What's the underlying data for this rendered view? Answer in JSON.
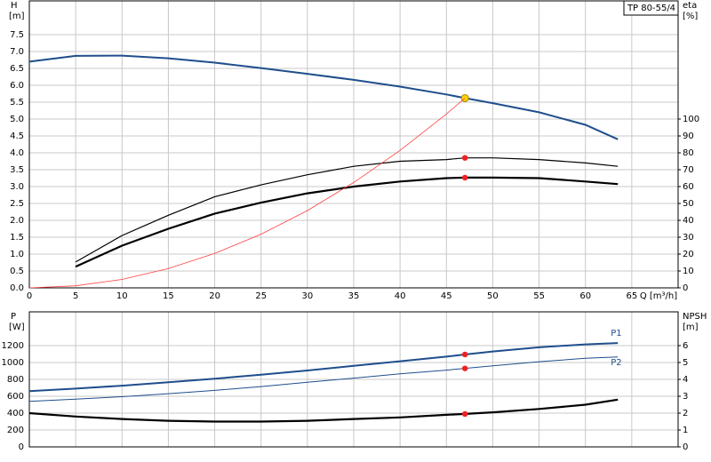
{
  "chart_data": [
    {
      "type": "line",
      "title": "TP 80-55/4",
      "ylabel": "H",
      "yunit": "[m]",
      "y2label": "eta",
      "y2unit": "[%]",
      "xlabel": "Q [m³/h]",
      "x": [
        0,
        5,
        10,
        15,
        20,
        25,
        30,
        35,
        40,
        45,
        47,
        50,
        55,
        60,
        63.5
      ],
      "xlim": [
        0,
        70
      ],
      "xticks": [
        0,
        5,
        10,
        15,
        20,
        25,
        30,
        35,
        40,
        45,
        50,
        55,
        60,
        65
      ],
      "show_xtick_labels": true,
      "ylim": [
        0,
        8.5
      ],
      "yticks": [
        {
          "value": 0,
          "label": "0.0"
        },
        0.5,
        {
          "value": 1,
          "label": "1.0"
        },
        1.5,
        {
          "value": 2,
          "label": "2.0"
        },
        2.5,
        {
          "value": 3,
          "label": "3.0"
        },
        3.5,
        {
          "value": 4,
          "label": "4.0"
        },
        4.5,
        {
          "value": 5,
          "label": "5.0"
        },
        5.5,
        {
          "value": 6,
          "label": "6.0"
        },
        6.5,
        {
          "value": 7,
          "label": "7.0"
        },
        7.5
      ],
      "y2lim": [
        0,
        170
      ],
      "y2ticks": [
        0,
        10,
        20,
        30,
        40,
        50,
        60,
        70,
        80,
        90,
        100
      ],
      "grid": true,
      "series": [
        {
          "color": "#1f4e8c",
          "width": 2,
          "values": [
            6.7,
            6.87,
            6.88,
            6.8,
            6.67,
            6.51,
            6.34,
            6.16,
            5.96,
            5.73,
            5.62,
            5.47,
            5.2,
            4.83,
            4.4
          ],
          "point": {
            "x": 47,
            "y": 5.62,
            "color": "#ffd700"
          }
        },
        {
          "color": "#000000",
          "width": 1.2,
          "axis": "y2",
          "values": [
            null,
            15.3,
            31,
            43,
            54,
            61,
            67,
            72,
            75,
            76,
            77,
            77,
            76,
            74,
            72
          ],
          "point": {
            "x": 47,
            "y": 77,
            "color": "#ee2222"
          }
        },
        {
          "color": "#000000",
          "width": 2.2,
          "axis": "y2",
          "values": [
            null,
            12.6,
            25,
            35,
            44,
            50.5,
            56,
            60,
            63,
            65,
            65.3,
            65.3,
            65,
            63,
            61.5
          ],
          "point": {
            "x": 47,
            "y": 65.3,
            "color": "#ee2222"
          }
        },
        {
          "color": "#ff4040",
          "width": 0.8,
          "values": [
            0,
            0.06,
            0.25,
            0.57,
            1.02,
            1.59,
            2.29,
            3.12,
            4.07,
            5.15,
            5.62,
            null,
            null,
            null,
            null
          ]
        }
      ]
    },
    {
      "type": "line",
      "ylabel": "P",
      "yunit": "[W]",
      "y2label": "NPSH",
      "y2unit": "[m]",
      "x": [
        0,
        5,
        10,
        15,
        20,
        25,
        30,
        35,
        40,
        45,
        47,
        50,
        55,
        60,
        63.5
      ],
      "xlim": [
        0,
        70
      ],
      "xticks": [
        0,
        5,
        10,
        15,
        20,
        25,
        30,
        35,
        40,
        45,
        50,
        55,
        60,
        65
      ],
      "show_xtick_labels": false,
      "ylim": [
        0,
        1600
      ],
      "yticks": [
        0,
        200,
        400,
        600,
        800,
        1000,
        1200
      ],
      "y2lim": [
        0,
        8
      ],
      "y2ticks": [
        0,
        1,
        2,
        3,
        4,
        5,
        6
      ],
      "grid": true,
      "series": [
        {
          "name": "P1",
          "color": "#1f4e8c",
          "width": 2,
          "values": [
            660,
            690,
            725,
            765,
            808,
            855,
            905,
            960,
            1015,
            1070,
            1095,
            1130,
            1180,
            1215,
            1230
          ],
          "point": {
            "x": 47,
            "y": 1095,
            "color": "#ee2222"
          }
        },
        {
          "name": "P2",
          "color": "#1f4e8c",
          "width": 1,
          "values": [
            540,
            565,
            595,
            630,
            670,
            715,
            765,
            815,
            865,
            910,
            930,
            960,
            1010,
            1050,
            1065
          ],
          "point": {
            "x": 47,
            "y": 930,
            "color": "#ee2222"
          }
        },
        {
          "color": "#000000",
          "width": 2.2,
          "axis": "y2",
          "values": [
            2.0,
            1.8,
            1.65,
            1.55,
            1.5,
            1.5,
            1.55,
            1.65,
            1.75,
            1.9,
            1.95,
            2.05,
            2.25,
            2.5,
            2.8
          ],
          "point": {
            "x": 47,
            "y": 1.95,
            "color": "#ee2222"
          }
        }
      ]
    }
  ]
}
